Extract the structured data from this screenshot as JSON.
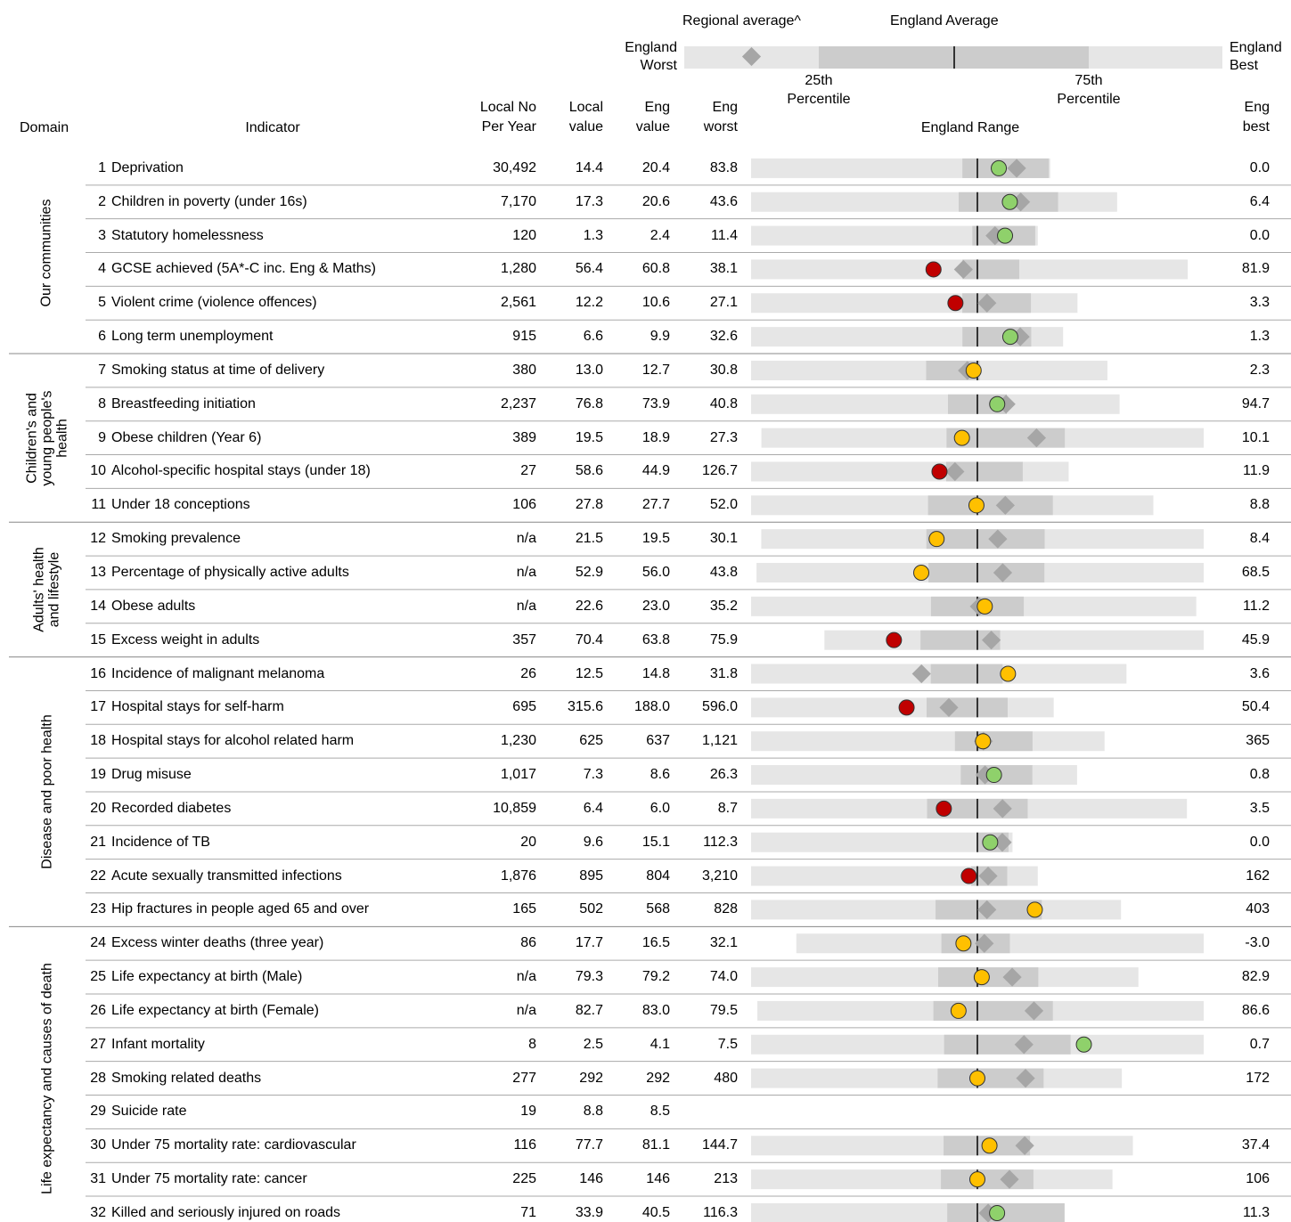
{
  "legend": {
    "regional_average": "Regional average^",
    "england_average": "England Average",
    "england_worst": "England Worst",
    "percentile_25": "25th Percentile",
    "percentile_75": "75th Percentile",
    "england_best": "England Best"
  },
  "columns": {
    "domain": "Domain",
    "indicator": "Indicator",
    "local_no": "Local No Per Year",
    "local_value": "Local value",
    "eng_value": "Eng value",
    "eng_worst": "Eng worst",
    "range": "England Range",
    "eng_best": "Eng best"
  },
  "domains": [
    {
      "label": "Our communities",
      "rows": [
        {
          "number": 1,
          "indicator": "Deprivation",
          "local_no": {
            "value": 30492,
            "label": "30,492"
          },
          "local_value": 14.4,
          "eng_value": 20.4,
          "eng_worst": 83.8,
          "eng_best": {
            "value": 0,
            "label": "0.0"
          },
          "regional_average": 9.4,
          "percentile_25": 24.6,
          "percentile_75": 0.4,
          "color": "#8fd16b"
        },
        {
          "number": 2,
          "indicator": "Children in poverty (under 16s)",
          "local_no": {
            "value": 7170,
            "label": "7,170"
          },
          "local_value": 17.3,
          "eng_value": 20.6,
          "eng_worst": 43.6,
          "eng_best": 6.4,
          "regional_average": 16.2,
          "percentile_25": 22.5,
          "percentile_75": 12.4,
          "color": "#8fd16b"
        },
        {
          "number": 3,
          "indicator": "Statutory homelessness",
          "local_no": 120,
          "local_value": 1.3,
          "eng_value": 2.4,
          "eng_worst": 11.4,
          "eng_best": {
            "value": 0,
            "label": "0.0"
          },
          "regional_average": 1.7,
          "percentile_25": 2.6,
          "percentile_75": 0.1,
          "color": "#8fd16b"
        },
        {
          "number": 4,
          "indicator": "GCSE achieved (5A*-C inc. Eng & Maths)",
          "local_no": {
            "value": 1280,
            "label": "1,280"
          },
          "local_value": 56.4,
          "eng_value": 60.8,
          "eng_worst": 38.1,
          "eng_best": 81.9,
          "regional_average": 59.4,
          "percentile_25": 59.3,
          "percentile_75": 65.0,
          "color": "#c00000"
        },
        {
          "number": 5,
          "indicator": "Violent crime (violence offences)",
          "local_no": {
            "value": 2561,
            "label": "2,561"
          },
          "local_value": 12.2,
          "eng_value": 10.6,
          "eng_worst": 27.1,
          "eng_best": 3.3,
          "regional_average": 9.9,
          "percentile_25": 11.7,
          "percentile_75": 6.7,
          "color": "#c00000"
        },
        {
          "number": 6,
          "indicator": "Long term unemployment",
          "local_no": 915,
          "local_value": 6.6,
          "eng_value": 9.9,
          "eng_worst": 32.6,
          "eng_best": 1.3,
          "regional_average": 5.6,
          "percentile_25": 11.4,
          "percentile_75": 4.5,
          "color": "#8fd16b"
        }
      ]
    },
    {
      "label": "Children's and young people's health",
      "rows": [
        {
          "number": 7,
          "indicator": "Smoking status at time of delivery",
          "local_no": 380,
          "local_value": {
            "value": 13,
            "label": "13.0"
          },
          "eng_value": 12.7,
          "eng_worst": 30.8,
          "eng_best": 2.3,
          "regional_average": 13.5,
          "percentile_25": 16.8,
          "percentile_75": 12.5,
          "color": "#ffc000"
        },
        {
          "number": 8,
          "indicator": "Breastfeeding initiation",
          "local_no": {
            "value": 2237,
            "label": "2,237"
          },
          "local_value": 76.8,
          "eng_value": 73.9,
          "eng_worst": 40.8,
          "eng_best": 94.7,
          "regional_average": 78.1,
          "percentile_25": 69.6,
          "percentile_75": 78.2,
          "color": "#8fd16b"
        },
        {
          "number": 9,
          "indicator": "Obese children (Year 6)",
          "local_no": 389,
          "local_value": 19.5,
          "eng_value": 18.9,
          "eng_worst": 27.3,
          "eng_best": 10.1,
          "regional_average": 16.6,
          "percentile_25": 20.1,
          "percentile_75": 15.5,
          "color": "#ffc000"
        },
        {
          "number": 10,
          "indicator": "Alcohol-specific hospital stays (under 18)",
          "local_no": 27,
          "local_value": 58.6,
          "eng_value": 44.9,
          "eng_worst": 126.7,
          "eng_best": 11.9,
          "regional_average": 53.0,
          "percentile_25": 56.2,
          "percentile_75": 28.5,
          "color": "#c00000"
        },
        {
          "number": 11,
          "indicator": "Under 18 conceptions",
          "local_no": 106,
          "local_value": 27.8,
          "eng_value": 27.7,
          "eng_worst": {
            "value": 52,
            "label": "52.0"
          },
          "eng_best": 8.8,
          "regional_average": 24.7,
          "percentile_25": 33.0,
          "percentile_75": 19.6,
          "color": "#ffc000"
        }
      ]
    },
    {
      "label": "Adults' health and lifestyle",
      "rows": [
        {
          "number": 12,
          "indicator": "Smoking prevalence",
          "local_no": "n/a",
          "local_value": 21.5,
          "eng_value": 19.5,
          "eng_worst": 30.1,
          "eng_best": 8.4,
          "regional_average": 18.5,
          "percentile_25": 22.0,
          "percentile_75": 16.2,
          "color": "#ffc000"
        },
        {
          "number": 13,
          "indicator": "Percentage of physically active adults",
          "local_no": "n/a",
          "local_value": 52.9,
          "eng_value": {
            "value": 56,
            "label": "56.0"
          },
          "eng_worst": 43.8,
          "eng_best": 68.5,
          "regional_average": 57.4,
          "percentile_25": 53.3,
          "percentile_75": 59.7,
          "color": "#ffc000"
        },
        {
          "number": 14,
          "indicator": "Obese adults",
          "local_no": "n/a",
          "local_value": 22.6,
          "eng_value": {
            "value": 23,
            "label": "23.0"
          },
          "eng_worst": 35.2,
          "eng_best": 11.2,
          "regional_average": 22.9,
          "percentile_25": 25.5,
          "percentile_75": 20.5,
          "color": "#ffc000"
        },
        {
          "number": 15,
          "indicator": "Excess weight in adults",
          "local_no": 357,
          "local_value": 70.4,
          "eng_value": 63.8,
          "eng_worst": 75.9,
          "eng_best": 45.9,
          "regional_average": 62.7,
          "percentile_25": 68.3,
          "percentile_75": 62.0,
          "color": "#c00000"
        }
      ]
    },
    {
      "label": "Disease and poor health",
      "rows": [
        {
          "number": 16,
          "indicator": "Incidence of malignant melanoma",
          "local_no": 26,
          "local_value": 12.5,
          "eng_value": 14.8,
          "eng_worst": 31.8,
          "eng_best": 3.6,
          "regional_average": 19.0,
          "percentile_25": 18.3,
          "percentile_75": 12.9,
          "color": "#ffc000"
        },
        {
          "number": 17,
          "indicator": "Hospital stays for self-harm",
          "local_no": 695,
          "local_value": 315.6,
          "eng_value": {
            "value": 188,
            "label": "188.0"
          },
          "eng_worst": {
            "value": 596,
            "label": "596.0"
          },
          "eng_best": 50.4,
          "regional_average": 239.4,
          "percentile_25": 279.6,
          "percentile_75": 133.4,
          "color": "#c00000"
        },
        {
          "number": 18,
          "indicator": "Hospital stays for alcohol related harm",
          "local_no": {
            "value": 1230,
            "label": "1,230"
          },
          "local_value": 625,
          "eng_value": 637,
          "eng_worst": {
            "value": 1121,
            "label": "1,121"
          },
          "eng_best": 365,
          "regional_average": 624,
          "percentile_25": 685,
          "percentile_75": 519,
          "color": "#ffc000"
        },
        {
          "number": 19,
          "indicator": "Drug misuse",
          "local_no": {
            "value": 1017,
            "label": "1,017"
          },
          "local_value": 7.3,
          "eng_value": 8.6,
          "eng_worst": 26.3,
          "eng_best": 0.8,
          "regional_average": 8.0,
          "percentile_25": 9.9,
          "percentile_75": 4.3,
          "color": "#8fd16b"
        },
        {
          "number": 20,
          "indicator": "Recorded diabetes",
          "local_no": {
            "value": 10859,
            "label": "10,859"
          },
          "local_value": 6.4,
          "eng_value": {
            "value": 6,
            "label": "6.0"
          },
          "eng_worst": 8.7,
          "eng_best": 3.5,
          "regional_average": 5.7,
          "percentile_25": 6.6,
          "percentile_75": 5.4,
          "color": "#c00000"
        },
        {
          "number": 21,
          "indicator": "Incidence of TB",
          "local_no": 20,
          "local_value": 9.6,
          "eng_value": 15.1,
          "eng_worst": 112.3,
          "eng_best": {
            "value": 0,
            "label": "0.0"
          },
          "regional_average": 4.4,
          "percentile_25": 15.2,
          "percentile_75": 1.7,
          "color": "#8fd16b"
        },
        {
          "number": 22,
          "indicator": "Acute sexually transmitted infections",
          "local_no": {
            "value": 1876,
            "label": "1,876"
          },
          "local_value": 895,
          "eng_value": 804,
          "eng_worst": {
            "value": 3210,
            "label": "3,210"
          },
          "eng_best": 162,
          "regional_average": 690,
          "percentile_25": 870,
          "percentile_75": 487,
          "color": "#c00000"
        },
        {
          "number": 23,
          "indicator": "Hip fractures in people aged 65 and over",
          "local_no": 165,
          "local_value": 502,
          "eng_value": 568,
          "eng_worst": 828,
          "eng_best": 403,
          "regional_average": 557,
          "percentile_25": 616,
          "percentile_75": 494,
          "color": "#ffc000"
        }
      ]
    },
    {
      "label": "Life expectancy and causes of death",
      "rows": [
        {
          "number": 24,
          "indicator": "Excess winter deaths (three year)",
          "local_no": 86,
          "local_value": 17.7,
          "eng_value": 16.5,
          "eng_worst": 32.1,
          "eng_best": {
            "value": -3,
            "label": "-3.0"
          },
          "regional_average": 15.9,
          "percentile_25": 19.6,
          "percentile_75": 13.7,
          "color": "#ffc000"
        },
        {
          "number": 25,
          "indicator": "Life expectancy at birth (Male)",
          "local_no": "n/a",
          "local_value": 79.3,
          "eng_value": 79.2,
          "eng_worst": {
            "value": 74,
            "label": "74.0"
          },
          "eng_best": 82.9,
          "regional_average": 80.0,
          "percentile_25": 78.3,
          "percentile_75": 80.6,
          "color": "#ffc000"
        },
        {
          "number": 26,
          "indicator": "Life expectancy at birth (Female)",
          "local_no": "n/a",
          "local_value": 82.7,
          "eng_value": {
            "value": 83,
            "label": "83.0"
          },
          "eng_worst": 79.5,
          "eng_best": 86.6,
          "regional_average": 83.9,
          "percentile_25": 82.3,
          "percentile_75": 84.2,
          "color": "#ffc000"
        },
        {
          "number": 27,
          "indicator": "Infant mortality",
          "local_no": 8,
          "local_value": 2.5,
          "eng_value": 4.1,
          "eng_worst": 7.5,
          "eng_best": 0.7,
          "regional_average": 3.4,
          "percentile_25": 4.6,
          "percentile_75": 2.7,
          "color": "#8fd16b"
        },
        {
          "number": 28,
          "indicator": "Smoking related deaths",
          "local_no": 277,
          "local_value": 292,
          "eng_value": 292,
          "eng_worst": 480,
          "eng_best": 172,
          "regional_average": 252,
          "percentile_25": 325,
          "percentile_75": 237,
          "color": "#ffc000"
        },
        {
          "number": 29,
          "indicator": "Suicide rate",
          "local_no": 19,
          "local_value": 8.8,
          "eng_value": 8.5
        },
        {
          "number": 30,
          "indicator": "Under 75 mortality rate: cardiovascular",
          "local_no": 116,
          "local_value": 77.7,
          "eng_value": 81.1,
          "eng_worst": 144.7,
          "eng_best": 37.4,
          "regional_average": 67.8,
          "percentile_25": 90.6,
          "percentile_75": 66.3,
          "color": "#ffc000"
        },
        {
          "number": 31,
          "indicator": "Under 75 mortality rate: cancer",
          "local_no": 225,
          "local_value": 146,
          "eng_value": 146,
          "eng_worst": 213,
          "eng_best": 106,
          "regional_average": 136.5,
          "percentile_25": 156.8,
          "percentile_75": 129.4,
          "color": "#ffc000"
        },
        {
          "number": 32,
          "indicator": "Killed and seriously injured on roads",
          "local_no": 71,
          "local_value": 33.9,
          "eng_value": 40.5,
          "eng_worst": 116.3,
          "eng_best": 11.3,
          "regional_average": 36.9,
          "percentile_25": 50.6,
          "percentile_75": 11.3,
          "color": "#8fd16b"
        }
      ]
    }
  ]
}
